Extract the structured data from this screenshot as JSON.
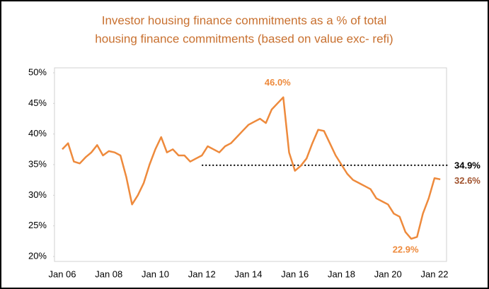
{
  "chart_data": {
    "type": "line",
    "title": [
      "Investor housing finance commitments  as a % of total",
      "housing finance commitments  (based on value exc- refi)"
    ],
    "categories": [
      "Jan 06",
      null,
      null,
      null,
      null,
      null,
      null,
      null,
      "Jan 08",
      null,
      null,
      null,
      null,
      null,
      null,
      null,
      "Jan 10",
      null,
      null,
      null,
      null,
      null,
      null,
      null,
      "Jan 12",
      null,
      null,
      null,
      null,
      null,
      null,
      null,
      "Jan 14",
      null,
      null,
      null,
      null,
      null,
      null,
      null,
      "Jan 16",
      null,
      null,
      null,
      null,
      null,
      null,
      null,
      "Jan 18",
      null,
      null,
      null,
      null,
      null,
      null,
      null,
      "Jan 20",
      null,
      null,
      null,
      null,
      null,
      null,
      null,
      "Jan 22",
      null
    ],
    "values": [
      37.5,
      38.5,
      35.5,
      35.2,
      36.2,
      37,
      38.2,
      36.5,
      37.2,
      37,
      36.5,
      33,
      28.5,
      30,
      32,
      35,
      37.5,
      39.5,
      37,
      37.5,
      36.5,
      36.5,
      35.5,
      36,
      36.5,
      38,
      37.5,
      37,
      38,
      38.5,
      39.5,
      40.5,
      41.5,
      42,
      42.5,
      41.8,
      44,
      45,
      46.0,
      37,
      34,
      34.8,
      36,
      38.5,
      40.7,
      40.5,
      38.5,
      36.5,
      35,
      33.5,
      32.5,
      32,
      31.5,
      31,
      29.5,
      29,
      28.5,
      27,
      26.5,
      24,
      22.9,
      23.2,
      27,
      29.5,
      32.8,
      32.6
    ],
    "value_labels": [
      null,
      null,
      null,
      null,
      null,
      null,
      null,
      null,
      null,
      null,
      null,
      null,
      null,
      null,
      null,
      null,
      null,
      null,
      null,
      null,
      null,
      null,
      null,
      null,
      null,
      null,
      null,
      null,
      null,
      null,
      null,
      null,
      null,
      null,
      null,
      null,
      null,
      null,
      "46.0%",
      null,
      null,
      null,
      null,
      null,
      null,
      null,
      null,
      null,
      null,
      null,
      null,
      null,
      null,
      null,
      null,
      null,
      null,
      null,
      null,
      null,
      "22.9%",
      null,
      null,
      null,
      null,
      "32.6%"
    ],
    "color": "#ee8a3c",
    "reference_line": {
      "value": 34.9,
      "label": "34.9%",
      "color": "#000000"
    },
    "ylim": [
      20,
      50
    ],
    "yticks": [
      {
        "value": 20,
        "label": "20%"
      },
      {
        "value": 25,
        "label": "25%"
      },
      {
        "value": 30,
        "label": "30%"
      },
      {
        "value": 35,
        "label": "35%"
      },
      {
        "value": 40,
        "label": "40%"
      },
      {
        "value": 45,
        "label": "45%"
      },
      {
        "value": 50,
        "label": "50%"
      }
    ],
    "grid": false
  }
}
